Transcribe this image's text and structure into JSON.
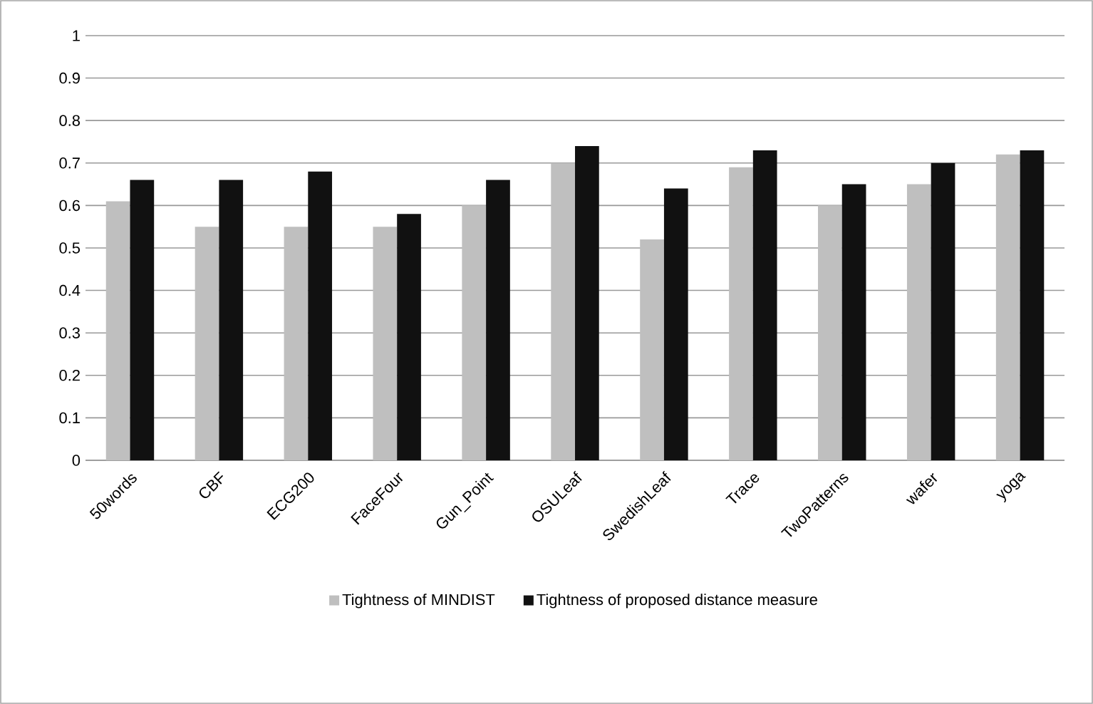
{
  "chart_data": {
    "type": "bar",
    "categories": [
      "50words",
      "CBF",
      "ECG200",
      "FaceFour",
      "Gun_Point",
      "OSULeaf",
      "SwedishLeaf",
      "Trace",
      "TwoPatterns",
      "wafer",
      "yoga"
    ],
    "series": [
      {
        "name": "Tightness of MINDIST",
        "color": "#bfbfbf",
        "values": [
          0.61,
          0.55,
          0.55,
          0.55,
          0.6,
          0.7,
          0.52,
          0.69,
          0.6,
          0.65,
          0.72
        ]
      },
      {
        "name": "Tightness of proposed distance measure",
        "color": "#111111",
        "values": [
          0.66,
          0.66,
          0.68,
          0.58,
          0.66,
          0.74,
          0.64,
          0.73,
          0.65,
          0.7,
          0.73
        ]
      }
    ],
    "ylim": [
      0,
      1
    ],
    "yticks": [
      0,
      0.1,
      0.2,
      0.3,
      0.4,
      0.5,
      0.6,
      0.7,
      0.8,
      0.9,
      1
    ],
    "grid": "y",
    "legend": "bottom"
  }
}
